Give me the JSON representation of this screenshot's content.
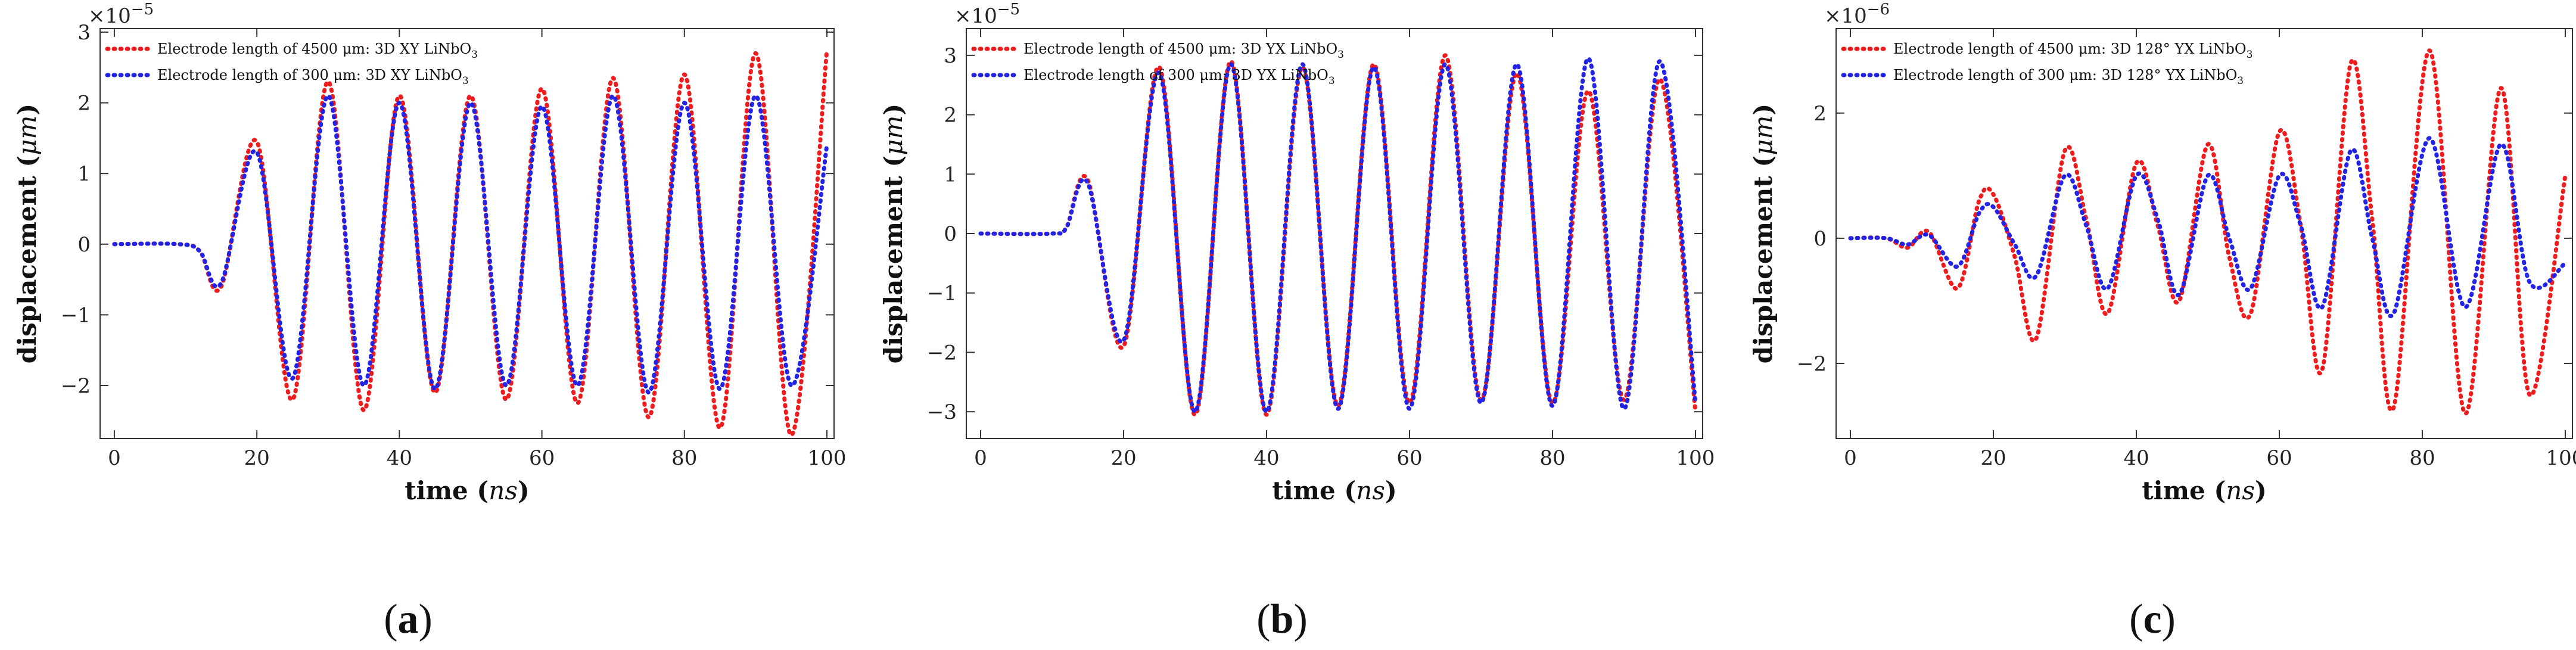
{
  "colors": {
    "red": "#ee1c1c",
    "blue": "#2323e6"
  },
  "chart_data": [
    {
      "type": "line",
      "panel_label": "a",
      "xlabel": "time",
      "xunit": "ns",
      "ylabel": "displacement",
      "yunit": "μm",
      "sci_base": "×10",
      "sci_exp": "−5",
      "xlim": [
        -2,
        101
      ],
      "ylim": [
        -2.75,
        3.05
      ],
      "xticks": [
        0,
        20,
        40,
        60,
        80,
        100
      ],
      "xtick_labels": [
        "0",
        "20",
        "40",
        "60",
        "80",
        "100"
      ],
      "yticks": [
        -2,
        -1,
        0,
        1,
        2,
        3
      ],
      "ytick_labels": [
        "−2",
        "−1",
        "0",
        "1",
        "2",
        "3"
      ],
      "legend_position": "top-left",
      "series": [
        {
          "name": "Electrode length of 4500 μm: 3D XY LiNbO₃",
          "legend_main": "Electrode length of 4500 μm: 3D XY LiNbO",
          "legend_sub": "3",
          "color": "red",
          "x": [
            0,
            9,
            12,
            15,
            20,
            25,
            30,
            35,
            40,
            45,
            50,
            55,
            60,
            65,
            70,
            75,
            80,
            85,
            90,
            95,
            100
          ],
          "y": [
            0,
            0,
            -0.1,
            -0.6,
            1.45,
            -2.2,
            2.3,
            -2.35,
            2.1,
            -2.1,
            2.1,
            -2.2,
            2.2,
            -2.25,
            2.35,
            -2.45,
            2.4,
            -2.6,
            2.7,
            -2.7,
            2.75
          ]
        },
        {
          "name": "Electrode length of 300 μm: 3D XY LiNbO₃",
          "legend_main": "Electrode length of 300 μm: 3D XY LiNbO",
          "legend_sub": "3",
          "color": "blue",
          "x": [
            0,
            9,
            12,
            15,
            20,
            25,
            30,
            35,
            40,
            45,
            50,
            55,
            60,
            65,
            70,
            75,
            80,
            85,
            90,
            95,
            100
          ],
          "y": [
            0,
            0,
            -0.1,
            -0.55,
            1.3,
            -1.9,
            2.1,
            -2.0,
            2.0,
            -2.05,
            2.0,
            -2.0,
            1.95,
            -2.0,
            2.1,
            -2.1,
            2.0,
            -2.05,
            2.1,
            -2.0,
            1.4
          ]
        }
      ]
    },
    {
      "type": "line",
      "panel_label": "b",
      "xlabel": "time",
      "xunit": "ns",
      "ylabel": "displacement",
      "yunit": "μm",
      "sci_base": "×10",
      "sci_exp": "−5",
      "xlim": [
        -2,
        101
      ],
      "ylim": [
        -3.45,
        3.45
      ],
      "xticks": [
        0,
        20,
        40,
        60,
        80,
        100
      ],
      "xtick_labels": [
        "0",
        "20",
        "40",
        "60",
        "80",
        "100"
      ],
      "yticks": [
        -3,
        -2,
        -1,
        0,
        1,
        2,
        3
      ],
      "ytick_labels": [
        "−3",
        "−2",
        "−1",
        "0",
        "1",
        "2",
        "3"
      ],
      "legend_position": "top-left",
      "series": [
        {
          "name": "Electrode length of 4500 μm: 3D YX LiNbO₃",
          "legend_main": "Electrode length of 4500 μm: 3D YX LiNbO",
          "legend_sub": "3",
          "color": "red",
          "x": [
            0,
            10,
            12,
            15,
            20,
            25,
            30,
            35,
            40,
            45,
            50,
            55,
            60,
            65,
            70,
            75,
            80,
            85,
            90,
            95,
            100
          ],
          "y": [
            0,
            0,
            0.1,
            0.9,
            -1.9,
            2.8,
            -3.05,
            2.9,
            -3.05,
            2.8,
            -2.9,
            2.85,
            -2.85,
            3.0,
            -2.8,
            2.7,
            -2.85,
            2.4,
            -2.8,
            2.6,
            -3.0
          ]
        },
        {
          "name": "Electrode length of 300 μm: 3D YX LiNbO₃",
          "legend_main": "Electrode length of 300 μm: 3D YX LiNbO",
          "legend_sub": "3",
          "color": "blue",
          "x": [
            0,
            10,
            12,
            15,
            20,
            25,
            30,
            35,
            40,
            45,
            50,
            55,
            60,
            65,
            70,
            75,
            80,
            85,
            90,
            95,
            100
          ],
          "y": [
            0,
            0,
            0.1,
            0.85,
            -1.8,
            2.7,
            -3.0,
            2.85,
            -3.0,
            2.85,
            -2.95,
            2.8,
            -2.95,
            2.85,
            -2.85,
            2.85,
            -2.9,
            2.95,
            -2.95,
            2.9,
            -2.85
          ]
        }
      ]
    },
    {
      "type": "line",
      "panel_label": "c",
      "xlabel": "time",
      "xunit": "ns",
      "ylabel": "displacement",
      "yunit": "μm",
      "sci_base": "×10",
      "sci_exp": "−6",
      "xlim": [
        -2,
        101
      ],
      "ylim": [
        -3.2,
        3.35
      ],
      "xticks": [
        0,
        20,
        40,
        60,
        80,
        100
      ],
      "xtick_labels": [
        "0",
        "20",
        "40",
        "60",
        "80",
        "100"
      ],
      "yticks": [
        -2,
        0,
        2
      ],
      "ytick_labels": [
        "−2",
        "0",
        "2"
      ],
      "legend_position": "top-left",
      "series": [
        {
          "name": "Electrode length of 4500 μm: 3D 128° YX LiNbO₃",
          "legend_main": "Electrode length of 4500 μm: 3D 128° YX LiNbO",
          "legend_sub": "3",
          "color": "red",
          "x": [
            0,
            5,
            8,
            11,
            15,
            18,
            20,
            23,
            26,
            30,
            33,
            36,
            40,
            43,
            46,
            50,
            53,
            56,
            60,
            63,
            66,
            70,
            73,
            76,
            81,
            86,
            91,
            95,
            100
          ],
          "y": [
            0,
            0,
            -0.15,
            0.1,
            -0.8,
            0.6,
            0.7,
            -0.3,
            -1.6,
            1.4,
            0.3,
            -1.2,
            1.2,
            0.2,
            -1.0,
            1.5,
            -0.3,
            -1.2,
            1.7,
            0.2,
            -2.1,
            2.8,
            0.3,
            -2.7,
            3.0,
            -2.8,
            2.4,
            -2.5,
            1.0
          ]
        },
        {
          "name": "Electrode length of 300 μm: 3D 128° YX LiNbO₃",
          "legend_main": "Electrode length of 300 μm: 3D 128° YX LiNbO",
          "legend_sub": "3",
          "color": "blue",
          "x": [
            0,
            5,
            8,
            11,
            15,
            18,
            20,
            23,
            26,
            30,
            33,
            36,
            40,
            43,
            46,
            50,
            53,
            56,
            60,
            63,
            66,
            70,
            73,
            76,
            81,
            86,
            91,
            95,
            100
          ],
          "y": [
            0,
            0,
            -0.1,
            0.05,
            -0.45,
            0.4,
            0.5,
            -0.1,
            -0.6,
            1.0,
            0.2,
            -0.8,
            1.0,
            0.3,
            -0.9,
            1.0,
            0.0,
            -0.8,
            1.0,
            0.2,
            -1.1,
            1.4,
            0.0,
            -1.2,
            1.6,
            -1.1,
            1.5,
            -0.7,
            -0.4
          ]
        }
      ]
    }
  ]
}
